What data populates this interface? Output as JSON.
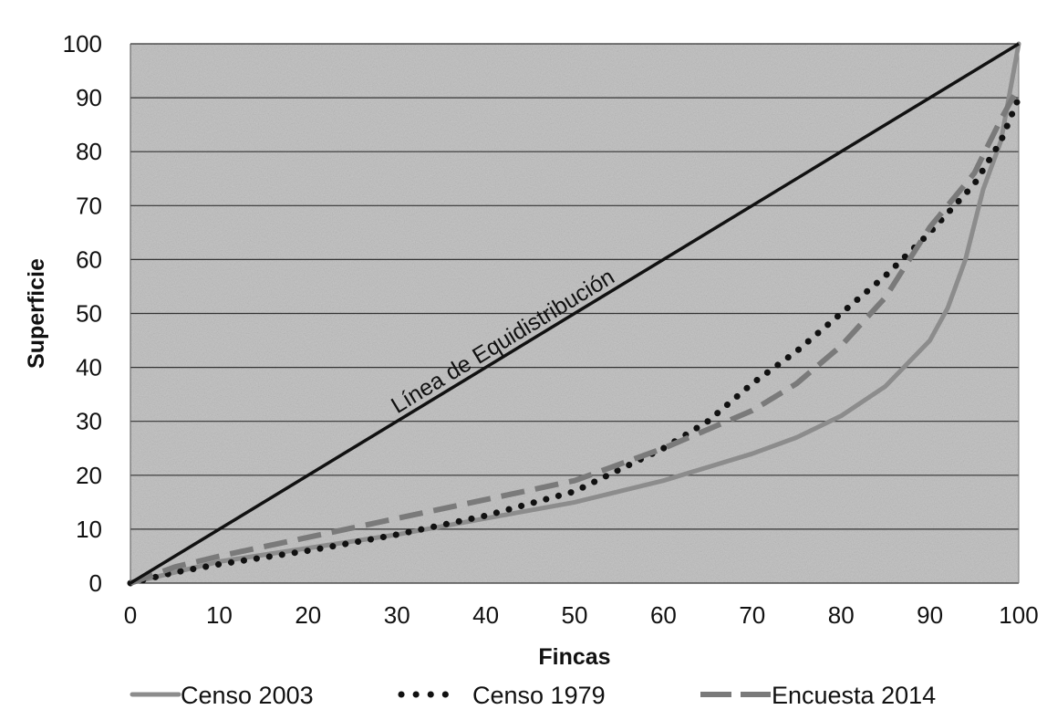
{
  "chart_data": {
    "type": "line",
    "xlabel": "Fincas",
    "ylabel": "Superficie",
    "xlim": [
      0,
      100
    ],
    "ylim": [
      0,
      100
    ],
    "xticks": [
      0,
      10,
      20,
      30,
      40,
      50,
      60,
      70,
      80,
      90,
      100
    ],
    "yticks": [
      0,
      10,
      20,
      30,
      40,
      50,
      60,
      70,
      80,
      90,
      100
    ],
    "grid": "horizontal",
    "legend_position": "bottom",
    "background": "#bdbdbd",
    "annotation": "Línea de Equidistribución",
    "equality_line": {
      "x": [
        0,
        100
      ],
      "y": [
        0,
        100
      ],
      "color": "#111111"
    },
    "series": [
      {
        "name": "Censo 2003",
        "style": "solid",
        "color": "#8c8c8c",
        "x": [
          0,
          5,
          10,
          20,
          30,
          40,
          50,
          60,
          70,
          75,
          80,
          85,
          90,
          92,
          94,
          96,
          98,
          100
        ],
        "y": [
          0,
          2,
          4,
          6.5,
          9,
          12,
          15,
          19,
          24,
          27,
          31,
          36.5,
          45,
          51,
          60,
          73,
          82,
          100
        ]
      },
      {
        "name": "Censo 1979",
        "style": "dotted",
        "color": "#111111",
        "x": [
          0,
          5,
          10,
          20,
          30,
          40,
          50,
          60,
          65,
          70,
          75,
          80,
          85,
          90,
          95,
          98,
          100
        ],
        "y": [
          0,
          2,
          3.5,
          6,
          9,
          12.5,
          17,
          25,
          30,
          37,
          43,
          50,
          57,
          65,
          74,
          82,
          90
        ]
      },
      {
        "name": "Encuesta 2014",
        "style": "dashed",
        "color": "#7a7a7a",
        "x": [
          0,
          5,
          10,
          20,
          30,
          40,
          50,
          60,
          65,
          70,
          75,
          80,
          85,
          90,
          95,
          98,
          100
        ],
        "y": [
          0,
          3,
          5,
          8.5,
          12,
          15.5,
          19,
          25,
          28.5,
          32,
          37,
          44,
          53,
          66,
          76,
          86,
          92
        ]
      }
    ]
  },
  "colors": {
    "plot_background": "#bdbdbd",
    "grid": "#333333"
  }
}
